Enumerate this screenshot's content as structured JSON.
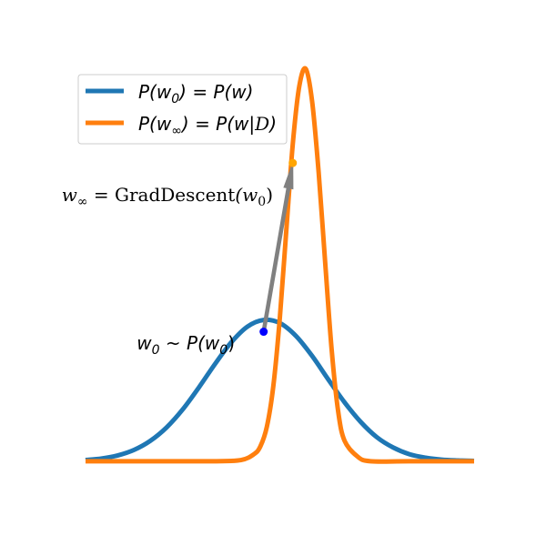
{
  "chart_data": {
    "type": "line",
    "title": "",
    "xlabel": "",
    "ylabel": "",
    "axes_visible": false,
    "grid": false,
    "legend_placement": "upper-left",
    "xlim": [
      -3,
      3
    ],
    "ylim": [
      -0.1,
      1.05
    ],
    "series": [
      {
        "id": "prior",
        "name": "P(w0) = P(w)",
        "color": "#1f77b4",
        "x": [
          -3.0,
          -2.75,
          -2.5,
          -2.25,
          -2.0,
          -1.75,
          -1.5,
          -1.25,
          -1.0,
          -0.75,
          -0.5,
          -0.25,
          0.0,
          0.25,
          0.5,
          0.75,
          1.0,
          1.25,
          1.5,
          1.75,
          2.0,
          2.25,
          2.5,
          2.75,
          3.0
        ],
        "y": [
          0.003,
          0.007,
          0.015,
          0.029,
          0.052,
          0.086,
          0.132,
          0.188,
          0.248,
          0.303,
          0.343,
          0.36,
          0.352,
          0.319,
          0.268,
          0.208,
          0.15,
          0.1,
          0.061,
          0.035,
          0.018,
          0.009,
          0.004,
          0.002,
          0.001
        ]
      },
      {
        "id": "posterior",
        "name": "P(w∞) = P(w|D)",
        "color": "#ff7f0e",
        "x": [
          -3.0,
          -2.0,
          -1.0,
          -0.6,
          -0.4,
          -0.3,
          -0.2,
          -0.1,
          0.0,
          0.1,
          0.2,
          0.3,
          0.4,
          0.5,
          0.6,
          0.7,
          0.8,
          0.9,
          1.0,
          1.2,
          1.4,
          2.0,
          3.0
        ],
        "y": [
          0.0,
          0.0,
          0.0,
          0.003,
          0.018,
          0.038,
          0.088,
          0.192,
          0.365,
          0.588,
          0.808,
          0.955,
          1.0,
          0.915,
          0.735,
          0.507,
          0.285,
          0.128,
          0.052,
          0.012,
          0.0,
          0.0,
          0.0
        ]
      }
    ],
    "points": [
      {
        "id": "w0",
        "x": -0.25,
        "y": 0.33,
        "color": "#0000ff"
      },
      {
        "id": "winf",
        "x": 0.2,
        "y": 0.76,
        "color": "#ffa500"
      }
    ],
    "arrow": {
      "from": "w0",
      "to": "winf",
      "color": "#808080"
    },
    "annotations": {
      "prior_sample": {
        "lhs": "w",
        "sub": "0",
        "rel": " ~ ",
        "rhs": "P(w",
        "rhs_sub": "0",
        "rhs_close": ")"
      },
      "grad_descent": {
        "lhs": "w",
        "sub": "∞",
        "rel": " = ",
        "op": "GradDescent",
        "arg": "(w",
        "arg_sub": "0",
        "arg_close": ")"
      }
    },
    "legend": [
      {
        "series": "prior",
        "p1": "P(w",
        "s1": "0",
        "mid": ") = P(w)",
        "tail": ""
      },
      {
        "series": "posterior",
        "p1": "P(w",
        "s1": "∞",
        "mid": ") = P(w|",
        "cal": "D",
        "tail": ")"
      }
    ]
  }
}
